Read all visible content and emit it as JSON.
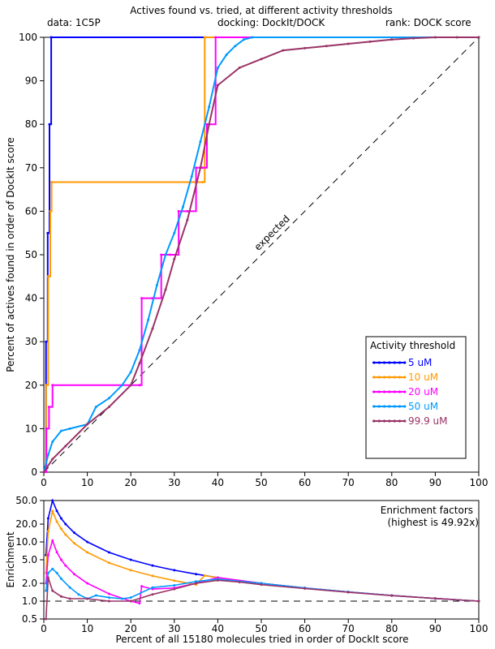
{
  "header": {
    "title": "Actives found vs. tried, at different activity thresholds",
    "data_label": "data: 1C5P",
    "docking_label": "docking: DockIt/DOCK",
    "rank_label": "rank: DOCK score"
  },
  "chart_data": [
    {
      "type": "line",
      "title": "Actives found vs. tried, at different activity thresholds",
      "ylabel": "Percent of actives found in order of DockIt score",
      "xlabel": "",
      "xlim": [
        0,
        100
      ],
      "ylim": [
        0,
        100
      ],
      "x_ticks": [
        "0",
        "10",
        "20",
        "30",
        "40",
        "50",
        "60",
        "70",
        "80",
        "90",
        "100"
      ],
      "y_ticks": [
        "0",
        "10",
        "20",
        "30",
        "40",
        "50",
        "60",
        "70",
        "80",
        "90",
        "100"
      ],
      "grid": false,
      "legend_position": "bottom-right",
      "legend_title": "Activity threshold",
      "reference_line_label": "expected",
      "series": [
        {
          "name": "5 uM",
          "color": "#0000ff",
          "step": true,
          "x": [
            0,
            0.5,
            0.9,
            1.3,
            1.7,
            100
          ],
          "y": [
            0,
            30,
            55,
            80,
            100,
            100
          ]
        },
        {
          "name": "10 uM",
          "color": "#ff9900",
          "step": true,
          "x": [
            0,
            0.5,
            1,
            1.5,
            1.8,
            36.5,
            37,
            100
          ],
          "y": [
            0,
            20,
            45,
            60,
            66.7,
            66.7,
            100,
            100
          ]
        },
        {
          "name": "20 uM",
          "color": "#ff00ff",
          "step": true,
          "x": [
            0,
            0.6,
            1.2,
            2,
            22,
            22.5,
            25,
            27,
            29,
            31,
            33,
            35,
            36.5,
            37.5,
            39.5,
            100
          ],
          "y": [
            0,
            10,
            15,
            20,
            20,
            40,
            40,
            50,
            50,
            60,
            60,
            70,
            70,
            80,
            100,
            100
          ]
        },
        {
          "name": "50 uM",
          "color": "#0099ff",
          "step": false,
          "x": [
            0,
            1,
            2,
            4,
            6,
            10,
            12,
            15,
            18,
            20,
            22,
            24,
            26,
            28,
            30,
            32,
            34,
            36,
            38,
            40,
            42,
            44,
            46,
            48,
            100
          ],
          "y": [
            0,
            4,
            7,
            9.5,
            10,
            11,
            15,
            17,
            20,
            23,
            28,
            35,
            43,
            50,
            55,
            61,
            68,
            76,
            84,
            93,
            96,
            98,
            99.5,
            100,
            100
          ]
        },
        {
          "name": "99.9 uM",
          "color": "#993366",
          "step": false,
          "x": [
            0,
            2,
            5,
            10,
            15,
            20,
            22,
            25,
            28,
            30,
            33,
            36,
            38,
            40,
            45,
            50,
            55,
            60,
            65,
            70,
            75,
            80,
            85,
            90,
            95,
            100
          ],
          "y": [
            0,
            3,
            6,
            11,
            15,
            20,
            25,
            33,
            42,
            49,
            58,
            70,
            80,
            89,
            93,
            95,
            97,
            97.5,
            98,
            98.5,
            99,
            99.5,
            99.8,
            100,
            100,
            100
          ]
        }
      ]
    },
    {
      "type": "line",
      "title": "",
      "ylabel": "Enrichment",
      "xlabel": "Percent of all 15180 molecules tried in order of DockIt score",
      "xlim": [
        0,
        100
      ],
      "ylim": [
        0.5,
        50
      ],
      "y_scale": "log",
      "x_ticks": [
        "0",
        "10",
        "20",
        "30",
        "40",
        "50",
        "60",
        "70",
        "80",
        "90",
        "100"
      ],
      "y_ticks": [
        "50.0",
        "20.0",
        "10.0",
        "5.0",
        "2.0",
        "1.0",
        "0.5"
      ],
      "y_tick_values": [
        50,
        20,
        10,
        5,
        2,
        1,
        0.5
      ],
      "annotation_line1": "Enrichment factors",
      "annotation_line2": "(highest is 49.92x)",
      "reference_value": 1,
      "series": [
        {
          "name": "5 uM",
          "color": "#0000ff",
          "x": [
            0.5,
            1,
            2,
            3,
            4,
            5,
            7,
            10,
            15,
            20,
            25,
            30,
            35,
            40,
            50,
            60,
            70,
            80,
            90,
            100
          ],
          "y": [
            6,
            25,
            49.92,
            33.3,
            25,
            20,
            14.3,
            10,
            6.67,
            5,
            4,
            3.33,
            2.86,
            2.5,
            2,
            1.67,
            1.43,
            1.25,
            1.11,
            1
          ]
        },
        {
          "name": "10 uM",
          "color": "#ff9900",
          "x": [
            0.5,
            1,
            2,
            3,
            4,
            5,
            7,
            10,
            15,
            20,
            25,
            30,
            35,
            37,
            40,
            50,
            60,
            70,
            80,
            90,
            100
          ],
          "y": [
            3,
            15,
            33,
            22,
            16.7,
            13.3,
            9.5,
            6.67,
            4.44,
            3.33,
            2.67,
            2.22,
            1.9,
            2.7,
            2.5,
            2,
            1.67,
            1.43,
            1.25,
            1.11,
            1
          ]
        },
        {
          "name": "20 uM",
          "color": "#ff00ff",
          "x": [
            0.5,
            1,
            2,
            3,
            4,
            5,
            7,
            10,
            15,
            20,
            22,
            22.5,
            25,
            30,
            35,
            40,
            50,
            60,
            70,
            80,
            90,
            100
          ],
          "y": [
            2,
            6,
            10.5,
            6.7,
            5,
            4,
            2.86,
            2,
            1.33,
            1,
            0.92,
            1.78,
            1.6,
            1.67,
            2,
            2.5,
            2,
            1.67,
            1.43,
            1.25,
            1.11,
            1
          ]
        },
        {
          "name": "50 uM",
          "color": "#0099ff",
          "x": [
            0.5,
            1,
            2,
            3,
            4,
            6,
            8,
            10,
            12,
            15,
            18,
            20,
            25,
            30,
            35,
            40,
            50,
            60,
            70,
            80,
            90,
            100
          ],
          "y": [
            1.5,
            3,
            3.5,
            3,
            2.4,
            1.7,
            1.3,
            1.1,
            1.25,
            1.15,
            1.1,
            1.15,
            1.7,
            1.85,
            2.15,
            2.35,
            2,
            1.67,
            1.43,
            1.25,
            1.11,
            1
          ]
        },
        {
          "name": "99.9 uM",
          "color": "#993366",
          "x": [
            0.5,
            1,
            2,
            4,
            6,
            10,
            15,
            20,
            25,
            30,
            35,
            40,
            45,
            50,
            60,
            70,
            80,
            90,
            100
          ],
          "y": [
            0.5,
            2.5,
            1.5,
            1.2,
            1.1,
            1.1,
            1.0,
            1.0,
            1.3,
            1.6,
            2.0,
            2.25,
            2.1,
            1.9,
            1.63,
            1.41,
            1.24,
            1.11,
            1
          ]
        }
      ]
    }
  ]
}
